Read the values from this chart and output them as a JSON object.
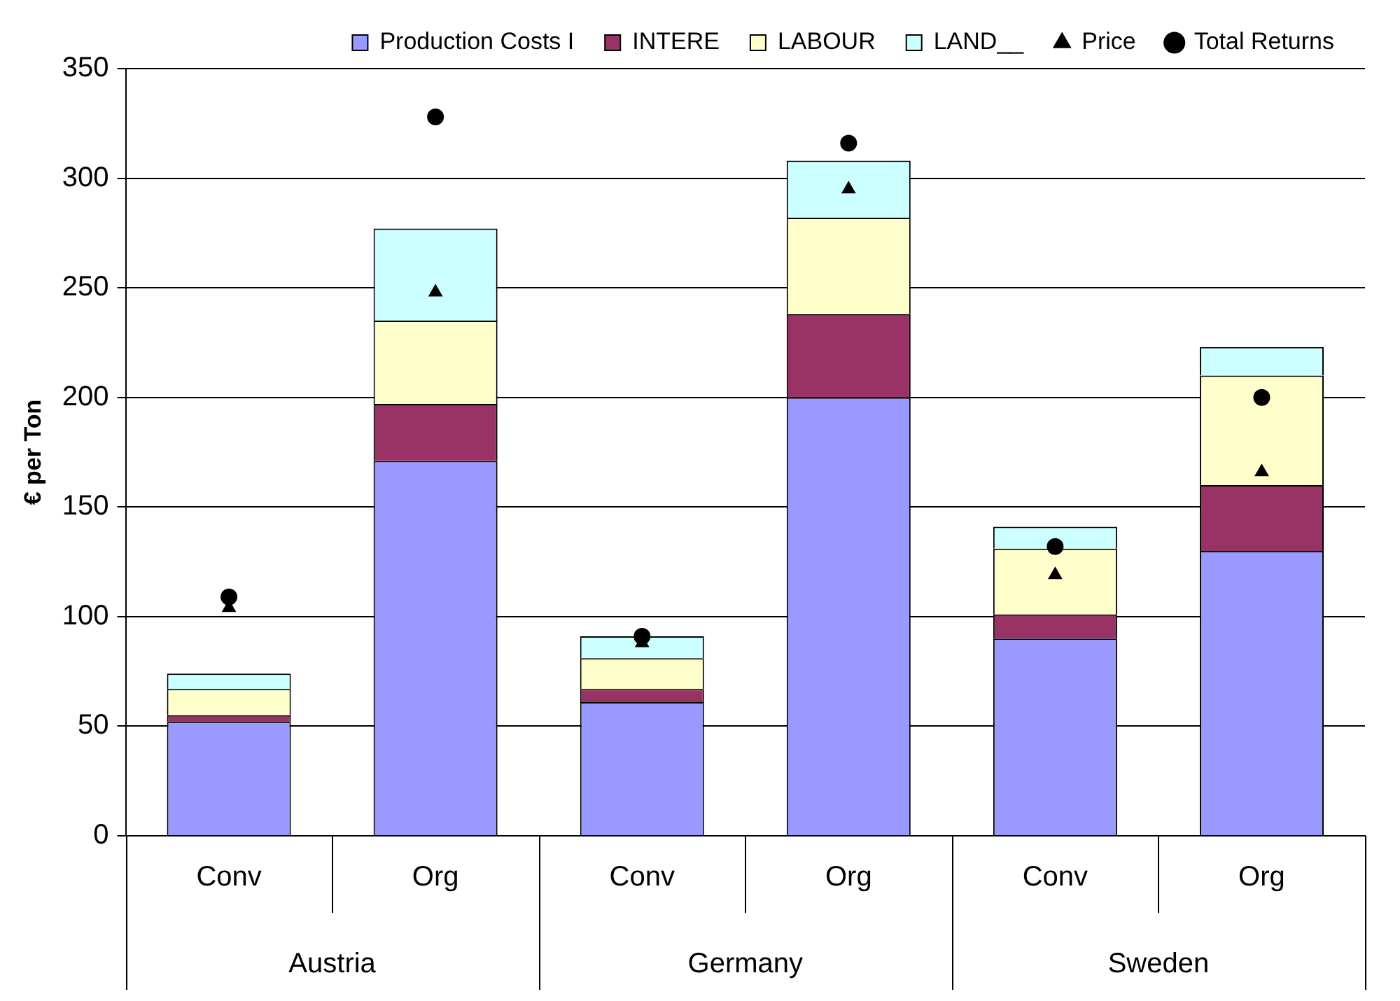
{
  "chart_data": {
    "type": "bar",
    "stacked": true,
    "ylabel": "€ per Ton",
    "categories": [
      "Conv",
      "Org",
      "Conv",
      "Org",
      "Conv",
      "Org"
    ],
    "annotations": [
      "Austria",
      "Germany",
      "Sweden"
    ],
    "series": [
      {
        "name": "Production Costs I",
        "color": "#9999ff",
        "values": [
          52,
          171,
          61,
          200,
          90,
          130
        ]
      },
      {
        "name": "INTERE",
        "color": "#993366",
        "values": [
          3,
          26,
          6,
          38,
          11,
          30
        ]
      },
      {
        "name": "LABOUR",
        "color": "#ffffcc",
        "values": [
          12,
          38,
          14,
          44,
          30,
          50
        ]
      },
      {
        "name": "LAND__",
        "color": "#ccffff",
        "values": [
          7,
          42,
          10,
          26,
          10,
          13
        ]
      },
      {
        "name": "Price",
        "type": "scatter",
        "marker": "triangle",
        "color": "#000000",
        "values": [
          104,
          248,
          88,
          295,
          119,
          166
        ]
      },
      {
        "name": "Total Returns",
        "type": "scatter",
        "marker": "circle",
        "color": "#000000",
        "values": [
          109,
          328,
          91,
          316,
          132,
          200
        ]
      }
    ],
    "ylim": [
      0,
      350
    ],
    "yticks": [
      0,
      50,
      100,
      150,
      200,
      250,
      300,
      350
    ],
    "grid": "y",
    "legend": "top"
  }
}
